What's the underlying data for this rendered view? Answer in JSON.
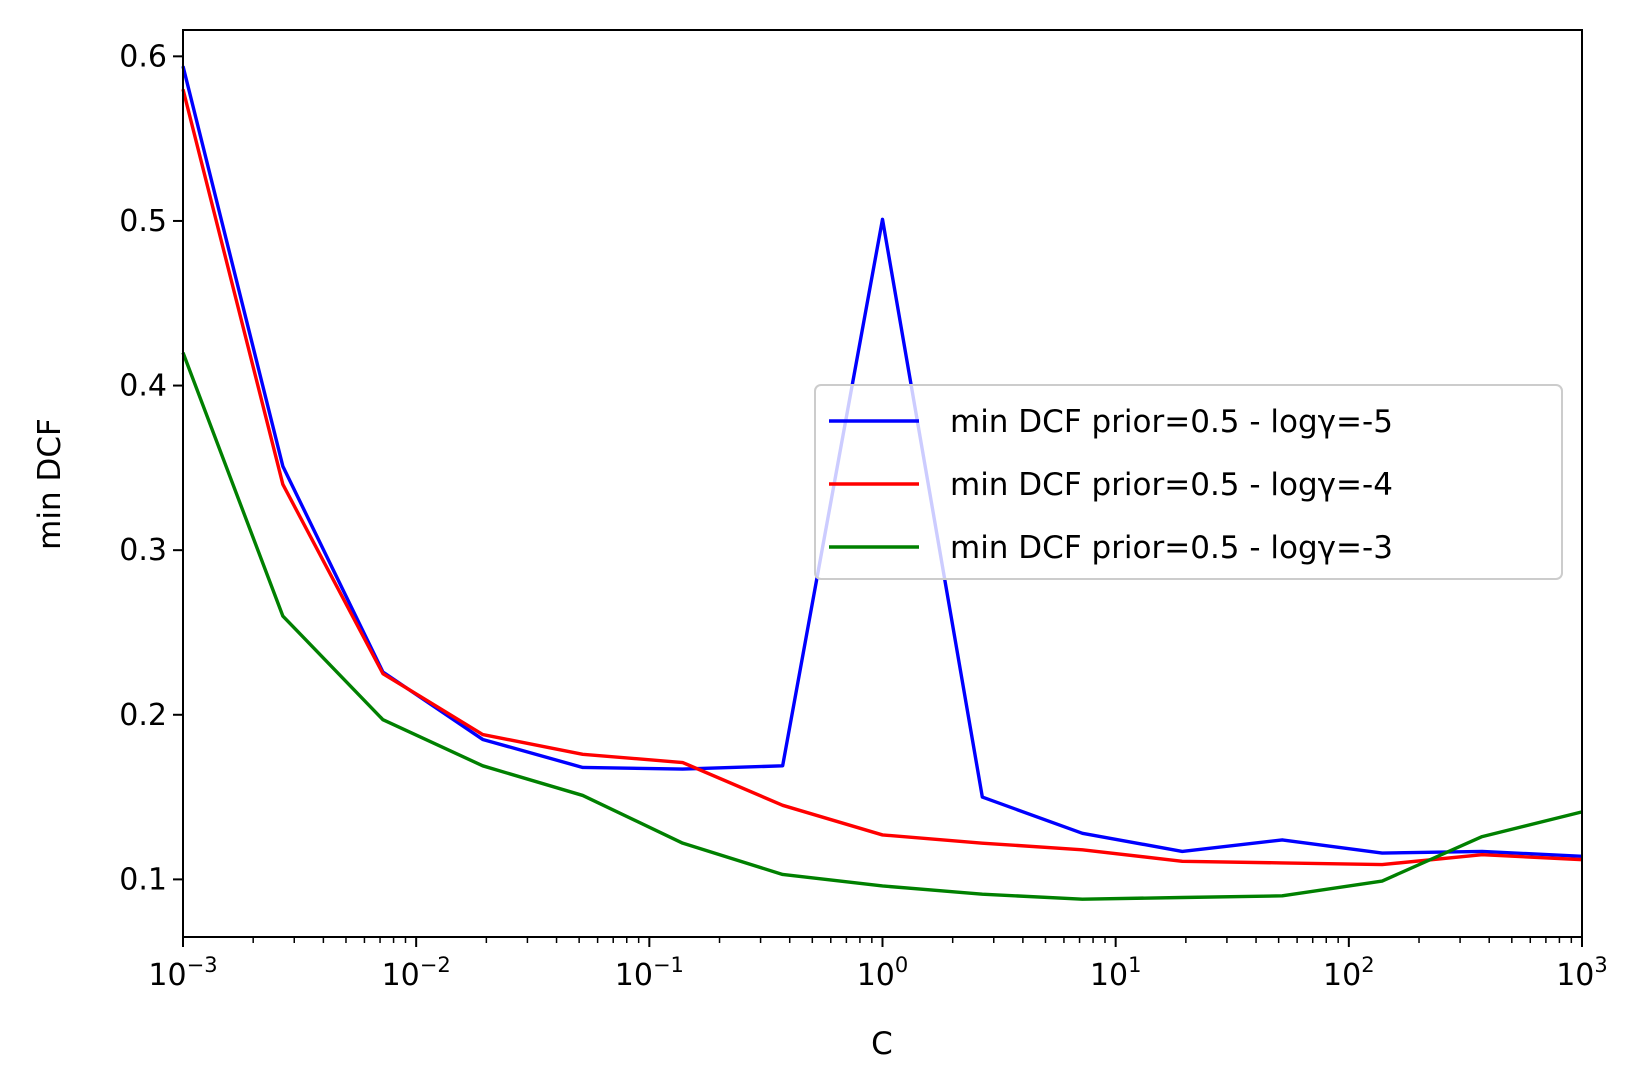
{
  "chart_data": {
    "type": "line",
    "xlabel": "C",
    "ylabel": "min DCF",
    "xscale": "log",
    "xlim": [
      0.001,
      1000
    ],
    "ylim": [
      0.065,
      0.616
    ],
    "grid": false,
    "legend_position": "center-right",
    "x": [
      0.001,
      0.00268,
      0.0072,
      0.0193,
      0.0518,
      0.139,
      0.373,
      1.0,
      2.68,
      7.2,
      19.3,
      51.8,
      139,
      373,
      1000
    ],
    "x_tick_labels": [
      {
        "base": "10",
        "exp": "−3",
        "value": 0.001
      },
      {
        "base": "10",
        "exp": "−2",
        "value": 0.01
      },
      {
        "base": "10",
        "exp": "−1",
        "value": 0.1
      },
      {
        "base": "10",
        "exp": "0",
        "value": 1
      },
      {
        "base": "10",
        "exp": "1",
        "value": 10
      },
      {
        "base": "10",
        "exp": "2",
        "value": 100
      },
      {
        "base": "10",
        "exp": "3",
        "value": 1000
      }
    ],
    "y_ticks": [
      0.1,
      0.2,
      0.3,
      0.4,
      0.5,
      0.6
    ],
    "y_tick_labels": [
      "0.1",
      "0.2",
      "0.3",
      "0.4",
      "0.5",
      "0.6"
    ],
    "series": [
      {
        "name": "min DCF prior=0.5 - logγ=-5",
        "color": "#0000ff",
        "values": [
          0.594,
          0.351,
          0.226,
          0.185,
          0.168,
          0.167,
          0.169,
          0.501,
          0.15,
          0.128,
          0.117,
          0.124,
          0.116,
          0.117,
          0.114
        ]
      },
      {
        "name": "min DCF prior=0.5 - logγ=-4",
        "color": "#ff0000",
        "values": [
          0.58,
          0.34,
          0.225,
          0.188,
          0.176,
          0.171,
          0.145,
          0.127,
          0.122,
          0.118,
          0.111,
          0.11,
          0.109,
          0.115,
          0.112
        ]
      },
      {
        "name": "min DCF prior=0.5 - logγ=-3",
        "color": "#008000",
        "values": [
          0.42,
          0.26,
          0.197,
          0.169,
          0.151,
          0.122,
          0.103,
          0.096,
          0.091,
          0.088,
          0.089,
          0.09,
          0.099,
          0.126,
          0.141
        ]
      }
    ]
  }
}
